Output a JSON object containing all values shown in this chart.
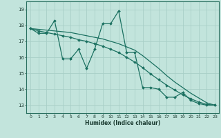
{
  "title": "",
  "xlabel": "Humidex (Indice chaleur)",
  "xlim": [
    -0.5,
    23.5
  ],
  "ylim": [
    12.5,
    19.5
  ],
  "yticks": [
    13,
    14,
    15,
    16,
    17,
    18,
    19
  ],
  "xticks": [
    0,
    1,
    2,
    3,
    4,
    5,
    6,
    7,
    8,
    9,
    10,
    11,
    12,
    13,
    14,
    15,
    16,
    17,
    18,
    19,
    20,
    21,
    22,
    23
  ],
  "bg_color": "#c2e4dc",
  "grid_color": "#a8cfc7",
  "line_color": "#1a7060",
  "line1_x": [
    0,
    1,
    2,
    3,
    4,
    5,
    5,
    6,
    7,
    8,
    9,
    10,
    11,
    12,
    13,
    14,
    15,
    16,
    17,
    18,
    19,
    20,
    21,
    22,
    23
  ],
  "line1_y": [
    17.8,
    17.5,
    17.5,
    18.3,
    15.9,
    15.9,
    15.9,
    16.5,
    15.3,
    16.5,
    18.1,
    18.1,
    18.9,
    16.3,
    16.3,
    14.1,
    14.1,
    14.0,
    13.5,
    13.5,
    13.8,
    13.3,
    13.1,
    13.0,
    13.0
  ],
  "line2_x": [
    0,
    1,
    2,
    3,
    4,
    5,
    6,
    7,
    8,
    9,
    10,
    11,
    12,
    13,
    14,
    15,
    16,
    17,
    18,
    19,
    20,
    21,
    22,
    23
  ],
  "line2_y": [
    17.8,
    17.65,
    17.55,
    17.45,
    17.35,
    17.25,
    17.1,
    17.0,
    16.85,
    16.7,
    16.5,
    16.3,
    16.0,
    15.7,
    15.35,
    14.95,
    14.6,
    14.25,
    13.95,
    13.65,
    13.4,
    13.2,
    13.05,
    13.0
  ],
  "line3_x": [
    0,
    1,
    2,
    3,
    4,
    5,
    6,
    7,
    8,
    9,
    10,
    11,
    12,
    13,
    14,
    15,
    16,
    17,
    18,
    19,
    20,
    21,
    22,
    23
  ],
  "line3_y": [
    17.8,
    17.75,
    17.7,
    17.65,
    17.6,
    17.55,
    17.45,
    17.35,
    17.25,
    17.15,
    17.0,
    16.85,
    16.65,
    16.45,
    16.1,
    15.7,
    15.3,
    14.85,
    14.45,
    14.1,
    13.75,
    13.45,
    13.15,
    13.0
  ]
}
